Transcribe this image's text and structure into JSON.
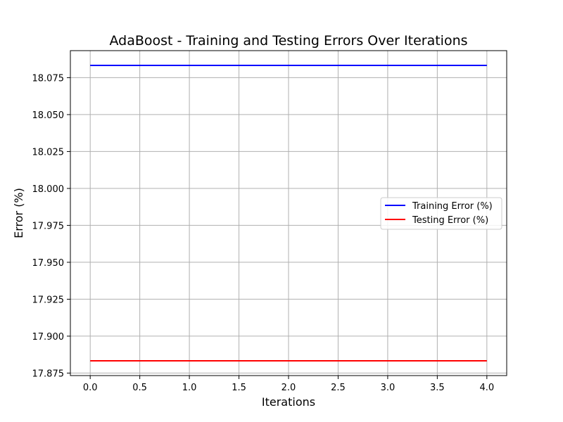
{
  "chart_data": {
    "type": "line",
    "title": "AdaBoost - Training and Testing Errors Over Iterations",
    "xlabel": "Iterations",
    "ylabel": "Error (%)",
    "x": [
      0,
      1,
      2,
      3,
      4
    ],
    "series": [
      {
        "name": "Training Error (%)",
        "color": "#0000ff",
        "values": [
          18.0833,
          18.0833,
          18.0833,
          18.0833,
          18.0833
        ]
      },
      {
        "name": "Testing Error (%)",
        "color": "#ff0000",
        "values": [
          17.8833,
          17.8833,
          17.8833,
          17.8833,
          17.8833
        ]
      }
    ],
    "xlim": [
      -0.2,
      4.2
    ],
    "ylim": [
      17.8733,
      18.0933
    ],
    "xticks": [
      0,
      0.5,
      1,
      1.5,
      2,
      2.5,
      3,
      3.5,
      4
    ],
    "xtick_labels": [
      "0.0",
      "0.5",
      "1.0",
      "1.5",
      "2.0",
      "2.5",
      "3.0",
      "3.5",
      "4.0"
    ],
    "yticks": [
      17.875,
      17.9,
      17.925,
      17.95,
      17.975,
      18.0,
      18.025,
      18.05,
      18.075
    ],
    "ytick_labels": [
      "17.875",
      "17.900",
      "17.925",
      "17.950",
      "17.975",
      "18.000",
      "18.025",
      "18.050",
      "18.075"
    ],
    "grid": true,
    "legend_position": "center-right"
  }
}
